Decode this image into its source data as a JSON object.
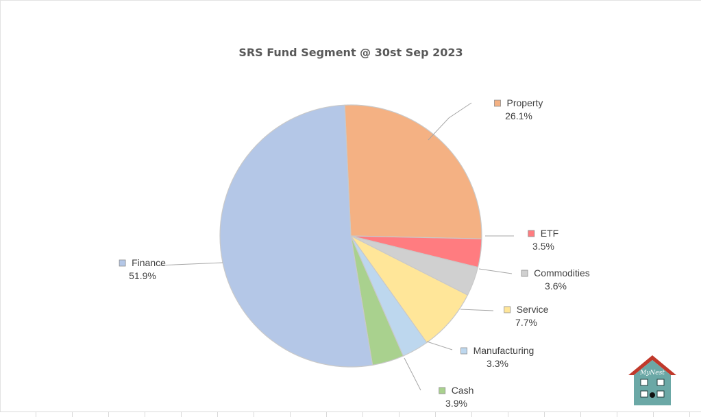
{
  "chart_data": {
    "type": "pie",
    "title": "SRS Fund Segment @ 30st Sep 2023",
    "legend": "none",
    "slices": [
      {
        "name": "Property",
        "value": 26.1,
        "label": "26.1%",
        "color": "#F4B183"
      },
      {
        "name": "ETF",
        "value": 3.5,
        "label": "3.5%",
        "color": "#FF7C80"
      },
      {
        "name": "Commodities",
        "value": 3.6,
        "label": "3.6%",
        "color": "#D0D0D0"
      },
      {
        "name": "Service",
        "value": 7.7,
        "label": "7.7%",
        "color": "#FFE699"
      },
      {
        "name": "Manufacturing",
        "value": 3.3,
        "label": "3.3%",
        "color": "#BDD7EE"
      },
      {
        "name": "Cash",
        "value": 3.9,
        "label": "3.9%",
        "color": "#A9D18E"
      },
      {
        "name": "Finance",
        "value": 51.9,
        "label": "51.9%",
        "color": "#B4C7E7"
      }
    ]
  },
  "logo": {
    "text": "MyNest",
    "color": "#C0392B"
  }
}
